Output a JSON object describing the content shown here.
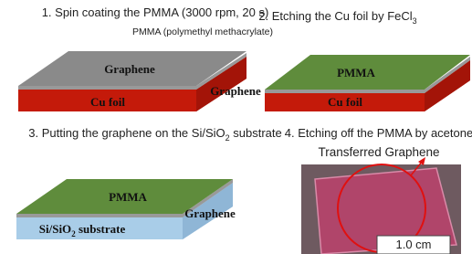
{
  "steps": [
    {
      "title": "1. Spin coating the PMMA (3000 rpm, 20 s)",
      "note": "PMMA (polymethyl methacrylate)",
      "labels": [
        "Graphene",
        "Cu foil"
      ]
    },
    {
      "title": "2. Etching the Cu foil by FeCl",
      "title_sub": "3",
      "labels": [
        "Graphene",
        "PMMA",
        "Cu foil"
      ]
    },
    {
      "title": "3. Putting the graphene on the Si/SiO",
      "title_sub": "2",
      "title_end": " substrate",
      "labels": [
        "PMMA",
        "Graphene"
      ],
      "substrate": "Si/SiO",
      "substrate_sub": "2",
      "substrate_end": " substrate"
    },
    {
      "title": "4. Etching off the PMMA by acetone",
      "note": "Transferred Graphene",
      "scale": "1.0 cm"
    }
  ]
}
